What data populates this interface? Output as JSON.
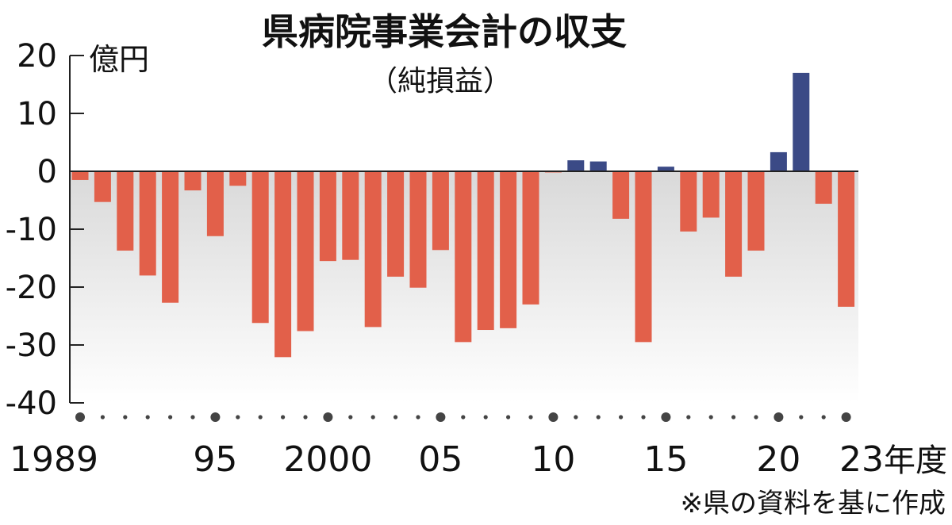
{
  "chart_data": {
    "type": "bar",
    "title": "県病院事業会計の収支",
    "subtitle": "（純損益）",
    "ylabel": "億円",
    "xunit": "年度",
    "source": "※県の資料を基に作成",
    "ylim": [
      -40,
      20
    ],
    "yticks": [
      "20",
      "10",
      "0",
      "-10",
      "-20",
      "-30",
      "-40"
    ],
    "grid": false,
    "years": [
      1989,
      1990,
      1991,
      1992,
      1993,
      1994,
      1995,
      1996,
      1997,
      1998,
      1999,
      2000,
      2001,
      2002,
      2003,
      2004,
      2005,
      2006,
      2007,
      2008,
      2009,
      2010,
      2011,
      2012,
      2013,
      2014,
      2015,
      2016,
      2017,
      2018,
      2019,
      2020,
      2021,
      2022,
      2023
    ],
    "x_labels": [
      {
        "year": 1989,
        "text": "1989"
      },
      {
        "year": 1995,
        "text": "95"
      },
      {
        "year": 2000,
        "text": "2000"
      },
      {
        "year": 2005,
        "text": "05"
      },
      {
        "year": 2010,
        "text": "10"
      },
      {
        "year": 2015,
        "text": "15"
      },
      {
        "year": 2020,
        "text": "20"
      },
      {
        "year": 2023,
        "text": "23"
      }
    ],
    "values": [
      -1.5,
      -5.3,
      -13.7,
      -18,
      -22.7,
      -3.3,
      -11.2,
      -2.5,
      -26.2,
      -32.1,
      -27.6,
      -15.5,
      -15.3,
      -26.9,
      -18.2,
      -20.1,
      -13.6,
      -29.5,
      -27.4,
      -27.1,
      -23,
      -0.2,
      1.9,
      1.7,
      -8.2,
      -29.5,
      0.8,
      -10.4,
      -8,
      -18.2,
      -13.7,
      3.3,
      17,
      -5.6,
      -23.4
    ],
    "colors": {
      "positive": "#3b4a86",
      "negative": "#e2604a",
      "axis": "#222222",
      "dot": "#444444"
    }
  }
}
